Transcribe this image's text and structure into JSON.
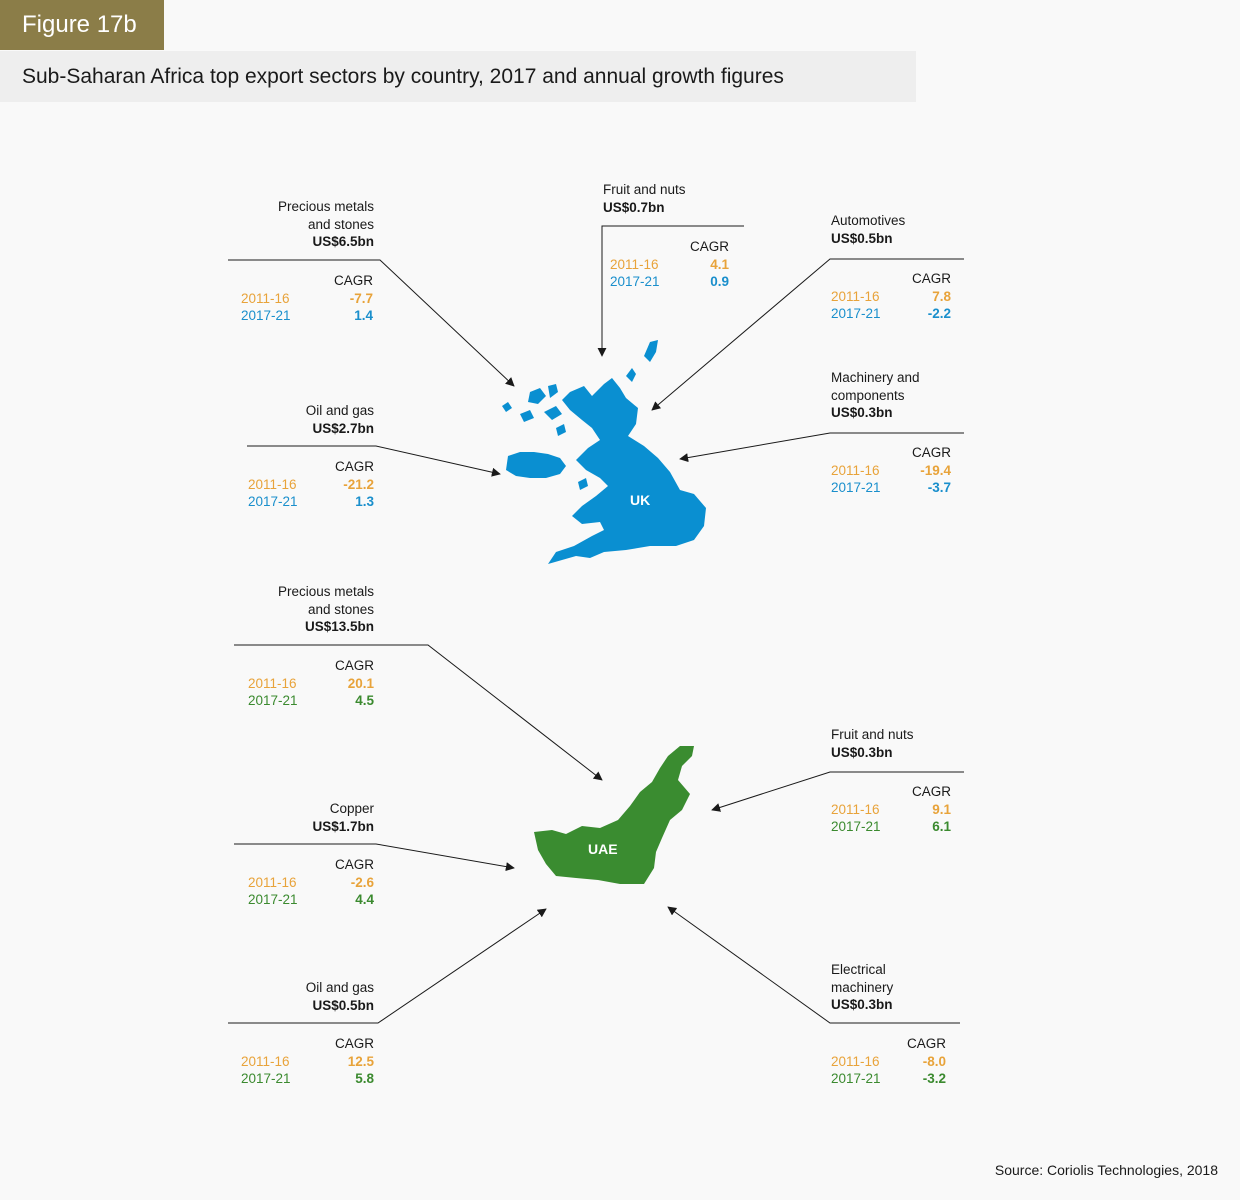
{
  "figure_label": "Figure 17b",
  "title": "Sub-Saharan Africa top export sectors by country, 2017 and annual growth figures",
  "source": "Source: Coriolis Technologies, 2018",
  "cagr_header": "CAGR",
  "period_1": "2011-16",
  "period_2": "2017-21",
  "colors": {
    "period_1": "#e8a33a",
    "uk": "#0a8fd1",
    "uae": "#3a8c30"
  },
  "uk": {
    "label": "UK",
    "sectors": [
      {
        "name": "Precious metals and stones",
        "value": "US$6.5bn",
        "cagr_2011_16": "-7.7",
        "cagr_2017_21": "1.4"
      },
      {
        "name": "Fruit and nuts",
        "value": "US$0.7bn",
        "cagr_2011_16": "4.1",
        "cagr_2017_21": "0.9"
      },
      {
        "name": "Automotives",
        "value": "US$0.5bn",
        "cagr_2011_16": "7.8",
        "cagr_2017_21": "-2.2"
      },
      {
        "name": "Oil and gas",
        "value": "US$2.7bn",
        "cagr_2011_16": "-21.2",
        "cagr_2017_21": "1.3"
      },
      {
        "name": "Machinery and components",
        "value": "US$0.3bn",
        "cagr_2011_16": "-19.4",
        "cagr_2017_21": "-3.7"
      }
    ]
  },
  "uae": {
    "label": "UAE",
    "sectors": [
      {
        "name": "Precious metals and stones",
        "value": "US$13.5bn",
        "cagr_2011_16": "20.1",
        "cagr_2017_21": "4.5"
      },
      {
        "name": "Fruit and nuts",
        "value": "US$0.3bn",
        "cagr_2011_16": "9.1",
        "cagr_2017_21": "6.1"
      },
      {
        "name": "Copper",
        "value": "US$1.7bn",
        "cagr_2011_16": "-2.6",
        "cagr_2017_21": "4.4"
      },
      {
        "name": "Oil and gas",
        "value": "US$0.5bn",
        "cagr_2011_16": "12.5",
        "cagr_2017_21": "5.8"
      },
      {
        "name": "Electrical machinery",
        "value": "US$0.3bn",
        "cagr_2011_16": "-8.0",
        "cagr_2017_21": "-3.2"
      }
    ]
  }
}
